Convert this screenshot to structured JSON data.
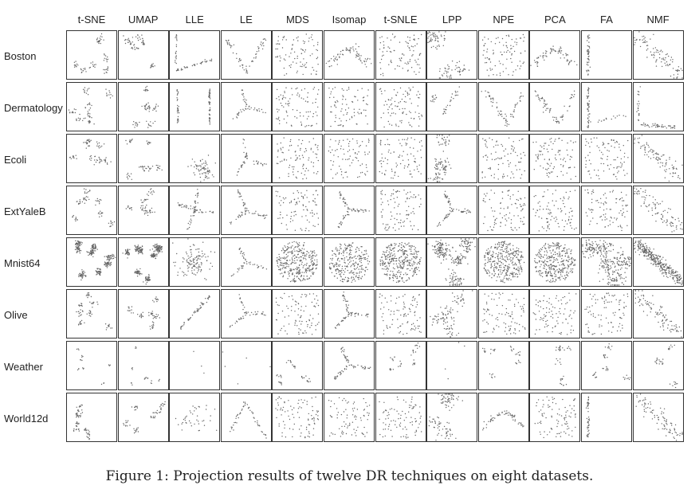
{
  "figure": {
    "columns": [
      "t-SNE",
      "UMAP",
      "LLE",
      "LE",
      "MDS",
      "Isomap",
      "t-SNLE",
      "LPP",
      "NPE",
      "PCA",
      "FA",
      "NMF"
    ],
    "rows": [
      "Boston",
      "Dermatology",
      "Ecoli",
      "ExtYaleB",
      "Mnist64",
      "Olive",
      "Weather",
      "World12d"
    ],
    "caption": "Figure 1: Projection results of twelve DR techniques on eight datasets.",
    "point_color": "#666666",
    "border_color": "#333333"
  }
}
